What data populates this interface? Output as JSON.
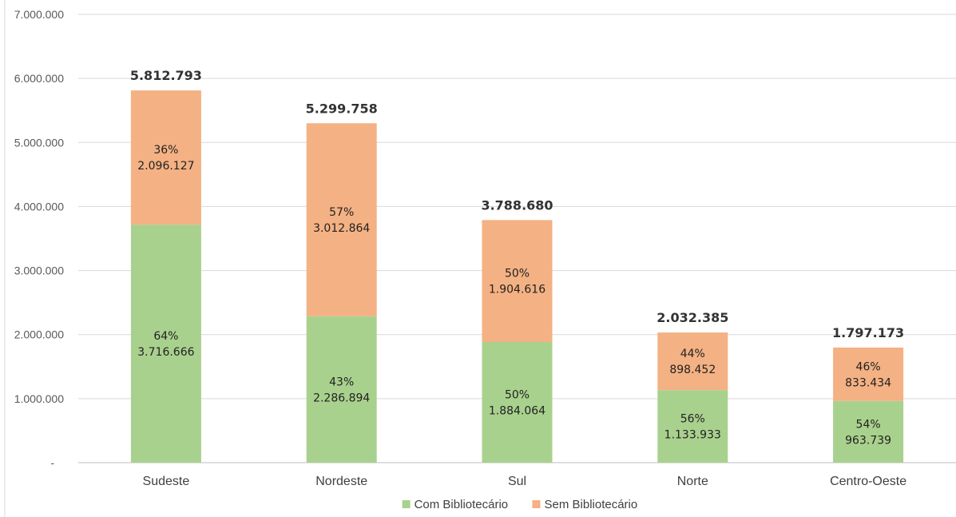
{
  "chart_data": {
    "type": "bar",
    "stacked": true,
    "categories": [
      "Sudeste",
      "Nordeste",
      "Sul",
      "Norte",
      "Centro-Oeste"
    ],
    "series": [
      {
        "name": "Com Bibliotecário",
        "color": "#a9d18e",
        "values": [
          3716666,
          2286894,
          1884064,
          1133933,
          963739
        ],
        "labels": [
          "3.716.666",
          "2.286.894",
          "1.884.064",
          "1.133.933",
          "963.739"
        ],
        "percent_labels": [
          "64%",
          "43%",
          "50%",
          "56%",
          "54%"
        ]
      },
      {
        "name": "Sem Bibliotecário",
        "color": "#f4b183",
        "values": [
          2096127,
          3012864,
          1904616,
          898452,
          833434
        ],
        "labels": [
          "2.096.127",
          "3.012.864",
          "1.904.616",
          "898.452",
          "833.434"
        ],
        "percent_labels": [
          "36%",
          "57%",
          "50%",
          "44%",
          "46%"
        ]
      }
    ],
    "totals": [
      "5.812.793",
      "5.299.758",
      "3.788.680",
      "2.032.385",
      "1.797.173"
    ],
    "y_ticks": [
      "-",
      "1.000.000",
      "2.000.000",
      "3.000.000",
      "4.000.000",
      "5.000.000",
      "6.000.000",
      "7.000.000"
    ],
    "ylim": [
      0,
      7000000
    ],
    "grid": true,
    "legend_position": "bottom",
    "title": "",
    "xlabel": "",
    "ylabel": ""
  }
}
